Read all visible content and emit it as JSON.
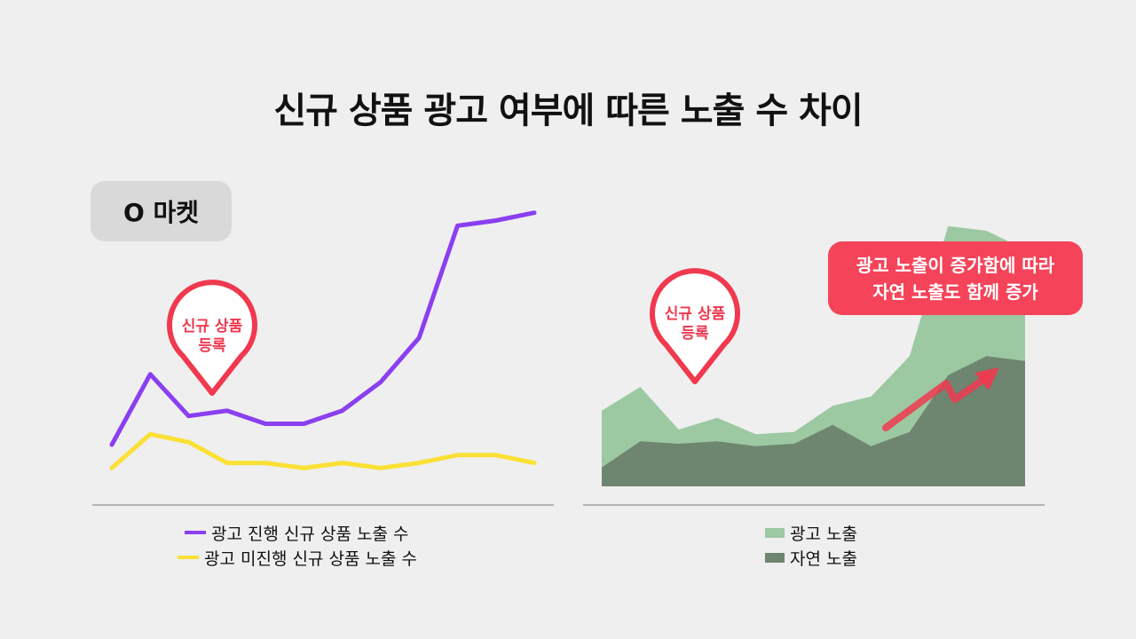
{
  "title": "신규 상품 광고 여부에 따른 노출 수 차이",
  "badge": "O 마켓",
  "colors": {
    "purple": "#8a3ff0",
    "yellow": "#fbe035",
    "light_green": "#9cc8a2",
    "dark_green": "#6e8570",
    "pin_red": "#f0394f",
    "callout_red": "#f5445a"
  },
  "chart_data": [
    {
      "type": "line",
      "x": [
        1,
        2,
        3,
        4,
        5,
        6,
        7,
        8,
        9,
        10,
        11,
        12
      ],
      "series": [
        {
          "name": "광고 진행 신규 상품 노출 수",
          "values": [
            16,
            43,
            27,
            29,
            24,
            24,
            29,
            40,
            57,
            100,
            102,
            105
          ]
        },
        {
          "name": "광고 미진행 신규 상품 노출 수",
          "values": [
            7,
            20,
            17,
            9,
            9,
            7,
            9,
            7,
            9,
            12,
            12,
            9
          ]
        }
      ],
      "ylim": [
        0,
        110
      ],
      "annotations": [
        {
          "text_lines": [
            "신규 상품",
            "등록"
          ],
          "at_x": 3
        }
      ],
      "legend": "bottom"
    },
    {
      "type": "area",
      "x": [
        1,
        2,
        3,
        4,
        5,
        6,
        7,
        8,
        9,
        10,
        11,
        12
      ],
      "series": [
        {
          "name": "광고 노출",
          "values": [
            32,
            42,
            24,
            29,
            22,
            23,
            34,
            38,
            55,
            110,
            108,
            100
          ]
        },
        {
          "name": "자연 노출",
          "values": [
            8,
            19,
            18,
            19,
            17,
            18,
            26,
            17,
            23,
            47,
            55,
            53
          ]
        }
      ],
      "ylim": [
        0,
        120
      ],
      "annotations": [
        {
          "text_lines": [
            "신규 상품",
            "등록"
          ],
          "at_x": 3
        },
        {
          "text_lines": [
            "광고 노출이 증가함에 따라",
            "자연 노출도 함께 증가"
          ]
        }
      ],
      "legend": "bottom"
    }
  ]
}
